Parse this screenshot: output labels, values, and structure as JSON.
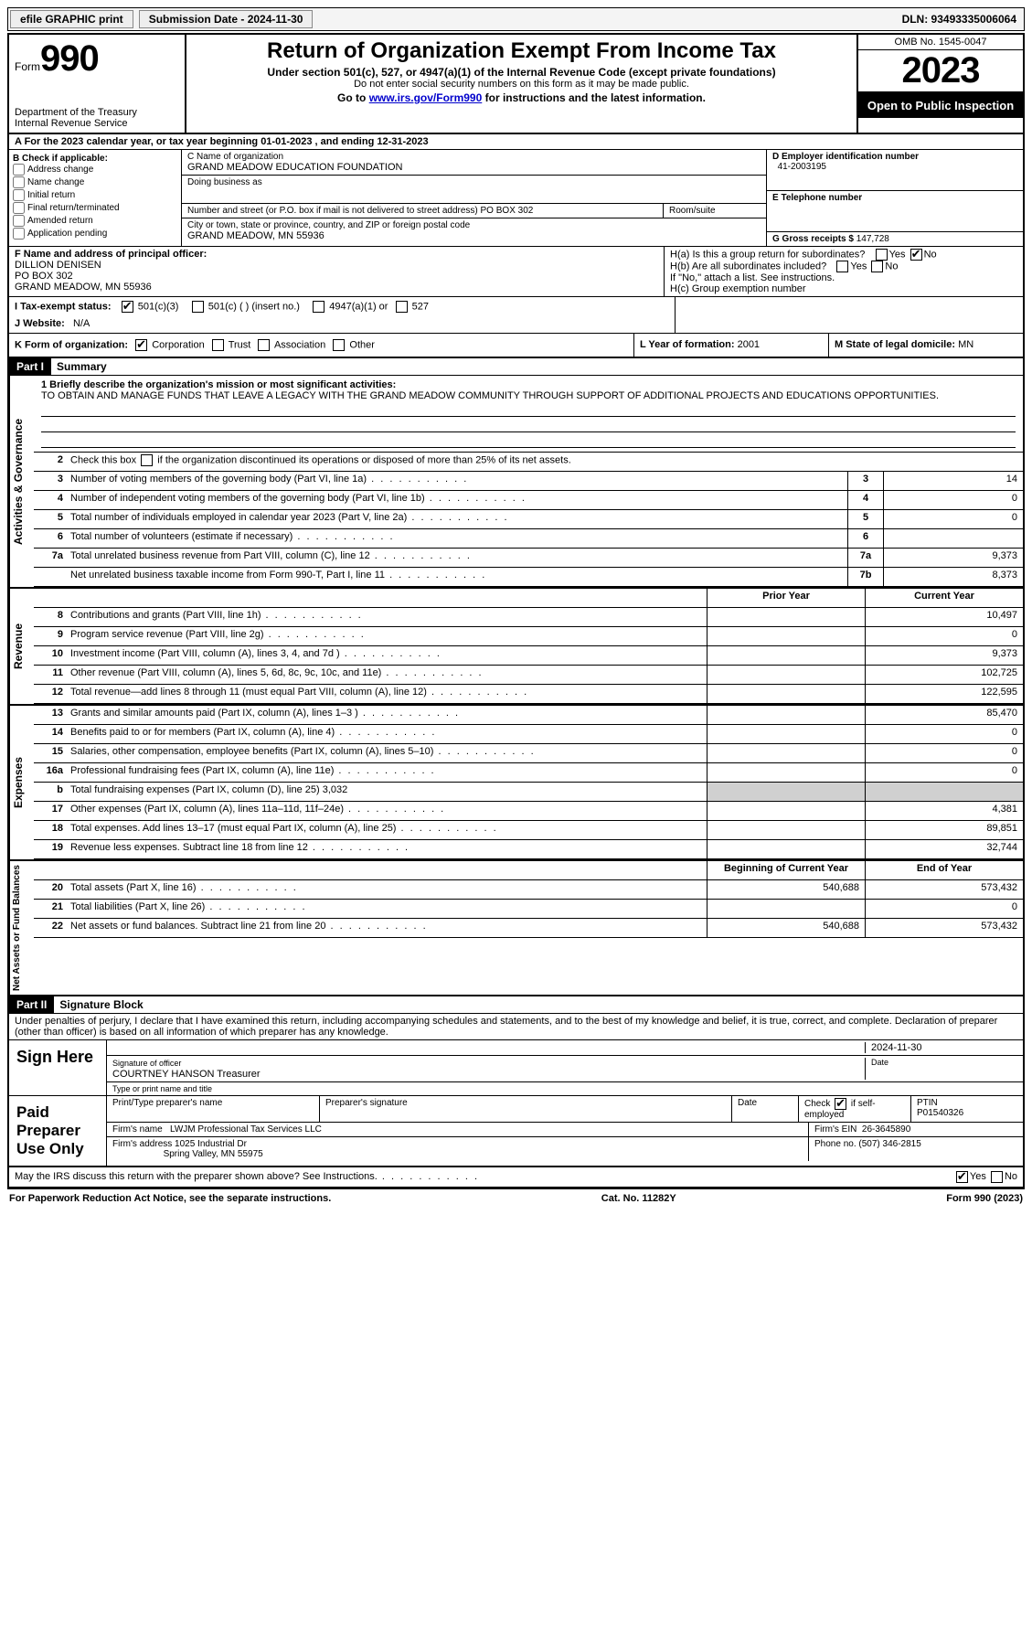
{
  "topbar": {
    "efile": "efile GRAPHIC print",
    "submission": "Submission Date - 2024-11-30",
    "dln": "DLN: 93493335006064"
  },
  "header": {
    "form_word": "Form",
    "form_num": "990",
    "dept": "Department of the Treasury",
    "irs": "Internal Revenue Service",
    "title": "Return of Organization Exempt From Income Tax",
    "sub": "Under section 501(c), 527, or 4947(a)(1) of the Internal Revenue Code (except private foundations)",
    "sub2": "Do not enter social security numbers on this form as it may be made public.",
    "goto_pre": "Go to ",
    "goto_link": "www.irs.gov/Form990",
    "goto_post": " for instructions and the latest information.",
    "omb": "OMB No. 1545-0047",
    "year": "2023",
    "inspect": "Open to Public Inspection"
  },
  "row_a": "A For the 2023 calendar year, or tax year beginning 01-01-2023   , and ending 12-31-2023",
  "box_b": {
    "title": "B Check if applicable:",
    "items": [
      "Address change",
      "Name change",
      "Initial return",
      "Final return/terminated",
      "Amended return",
      "Application pending"
    ]
  },
  "box_c": {
    "name_lbl": "C Name of organization",
    "name": "GRAND MEADOW EDUCATION FOUNDATION",
    "dba_lbl": "Doing business as",
    "dba": "",
    "street_lbl": "Number and street (or P.O. box if mail is not delivered to street address)",
    "street": "PO BOX 302",
    "room_lbl": "Room/suite",
    "city_lbl": "City or town, state or province, country, and ZIP or foreign postal code",
    "city": "GRAND MEADOW, MN  55936"
  },
  "box_d": {
    "lbl": "D Employer identification number",
    "val": "41-2003195"
  },
  "box_e": {
    "lbl": "E Telephone number",
    "val": ""
  },
  "box_g": {
    "lbl": "G Gross receipts $",
    "val": "147,728"
  },
  "box_f": {
    "lbl": "F  Name and address of principal officer:",
    "name": "DILLION DENISEN",
    "street": "PO BOX 302",
    "city": "GRAND MEADOW, MN  55936"
  },
  "box_h": {
    "ha": "H(a)  Is this a group return for subordinates?",
    "hb": "H(b)  Are all subordinates included?",
    "hb_note": "If \"No,\" attach a list. See instructions.",
    "hc": "H(c)  Group exemption number",
    "yes": "Yes",
    "no": "No"
  },
  "box_i": {
    "lbl": "I   Tax-exempt status:",
    "o1": "501(c)(3)",
    "o2": "501(c) (  ) (insert no.)",
    "o3": "4947(a)(1) or",
    "o4": "527"
  },
  "box_j": {
    "lbl": "J   Website:",
    "val": "N/A"
  },
  "box_k": {
    "lbl": "K Form of organization:",
    "o1": "Corporation",
    "o2": "Trust",
    "o3": "Association",
    "o4": "Other"
  },
  "box_l": {
    "lbl": "L Year of formation:",
    "val": "2001"
  },
  "box_m": {
    "lbl": "M State of legal domicile:",
    "val": "MN"
  },
  "part1": {
    "num": "Part I",
    "title": "Summary"
  },
  "mission": {
    "lbl": "1   Briefly describe the organization's mission or most significant activities:",
    "txt": "TO OBTAIN AND MANAGE FUNDS THAT LEAVE A LEGACY WITH THE GRAND MEADOW COMMUNITY THROUGH SUPPORT OF ADDITIONAL PROJECTS AND EDUCATIONS OPPORTUNITIES."
  },
  "line2": "Check this box      if the organization discontinued its operations or disposed of more than 25% of its net assets.",
  "sections": {
    "gov": {
      "label": "Activities & Governance",
      "lines": [
        {
          "n": "3",
          "t": "Number of voting members of the governing body (Part VI, line 1a)",
          "box": "3",
          "v": "14"
        },
        {
          "n": "4",
          "t": "Number of independent voting members of the governing body (Part VI, line 1b)",
          "box": "4",
          "v": "0"
        },
        {
          "n": "5",
          "t": "Total number of individuals employed in calendar year 2023 (Part V, line 2a)",
          "box": "5",
          "v": "0"
        },
        {
          "n": "6",
          "t": "Total number of volunteers (estimate if necessary)",
          "box": "6",
          "v": ""
        },
        {
          "n": "7a",
          "t": "Total unrelated business revenue from Part VIII, column (C), line 12",
          "box": "7a",
          "v": "9,373"
        },
        {
          "n": "",
          "t": "Net unrelated business taxable income from Form 990-T, Part I, line 11",
          "box": "7b",
          "v": "8,373"
        }
      ]
    },
    "rev": {
      "label": "Revenue",
      "hdr_prior": "Prior Year",
      "hdr_curr": "Current Year",
      "lines": [
        {
          "n": "8",
          "t": "Contributions and grants (Part VIII, line 1h)",
          "p": "",
          "c": "10,497"
        },
        {
          "n": "9",
          "t": "Program service revenue (Part VIII, line 2g)",
          "p": "",
          "c": "0"
        },
        {
          "n": "10",
          "t": "Investment income (Part VIII, column (A), lines 3, 4, and 7d )",
          "p": "",
          "c": "9,373"
        },
        {
          "n": "11",
          "t": "Other revenue (Part VIII, column (A), lines 5, 6d, 8c, 9c, 10c, and 11e)",
          "p": "",
          "c": "102,725"
        },
        {
          "n": "12",
          "t": "Total revenue—add lines 8 through 11 (must equal Part VIII, column (A), line 12)",
          "p": "",
          "c": "122,595"
        }
      ]
    },
    "exp": {
      "label": "Expenses",
      "lines": [
        {
          "n": "13",
          "t": "Grants and similar amounts paid (Part IX, column (A), lines 1–3 )",
          "p": "",
          "c": "85,470"
        },
        {
          "n": "14",
          "t": "Benefits paid to or for members (Part IX, column (A), line 4)",
          "p": "",
          "c": "0"
        },
        {
          "n": "15",
          "t": "Salaries, other compensation, employee benefits (Part IX, column (A), lines 5–10)",
          "p": "",
          "c": "0"
        },
        {
          "n": "16a",
          "t": "Professional fundraising fees (Part IX, column (A), line 11e)",
          "p": "",
          "c": "0"
        },
        {
          "n": "b",
          "t": "Total fundraising expenses (Part IX, column (D), line 25) 3,032",
          "p": "shade",
          "c": "shade"
        },
        {
          "n": "17",
          "t": "Other expenses (Part IX, column (A), lines 11a–11d, 11f–24e)",
          "p": "",
          "c": "4,381"
        },
        {
          "n": "18",
          "t": "Total expenses. Add lines 13–17 (must equal Part IX, column (A), line 25)",
          "p": "",
          "c": "89,851"
        },
        {
          "n": "19",
          "t": "Revenue less expenses. Subtract line 18 from line 12",
          "p": "",
          "c": "32,744"
        }
      ]
    },
    "net": {
      "label": "Net Assets or Fund Balances",
      "hdr_prior": "Beginning of Current Year",
      "hdr_curr": "End of Year",
      "lines": [
        {
          "n": "20",
          "t": "Total assets (Part X, line 16)",
          "p": "540,688",
          "c": "573,432"
        },
        {
          "n": "21",
          "t": "Total liabilities (Part X, line 26)",
          "p": "",
          "c": "0"
        },
        {
          "n": "22",
          "t": "Net assets or fund balances. Subtract line 21 from line 20",
          "p": "540,688",
          "c": "573,432"
        }
      ]
    }
  },
  "part2": {
    "num": "Part II",
    "title": "Signature Block"
  },
  "perjury": "Under penalties of perjury, I declare that I have examined this return, including accompanying schedules and statements, and to the best of my knowledge and belief, it is true, correct, and complete. Declaration of preparer (other than officer) is based on all information of which preparer has any knowledge.",
  "sign": {
    "here": "Sign Here",
    "sig_officer": "Signature of officer",
    "officer": "COURTNEY HANSON  Treasurer",
    "type_title": "Type or print name and title",
    "date_lbl": "Date",
    "date": "2024-11-30"
  },
  "paid": {
    "label": "Paid Preparer Use Only",
    "print_lbl": "Print/Type preparer's name",
    "sig_lbl": "Preparer's signature",
    "date_lbl": "Date",
    "check_lbl": "Check",
    "self_emp": "if self-employed",
    "ptin_lbl": "PTIN",
    "ptin": "P01540326",
    "firm_name_lbl": "Firm's name",
    "firm_name": "LWJM Professional Tax Services LLC",
    "firm_ein_lbl": "Firm's EIN",
    "firm_ein": "26-3645890",
    "firm_addr_lbl": "Firm's address",
    "firm_addr1": "1025 Industrial Dr",
    "firm_addr2": "Spring Valley, MN  55975",
    "phone_lbl": "Phone no.",
    "phone": "(507) 346-2815"
  },
  "discuss": "May the IRS discuss this return with the preparer shown above? See Instructions.",
  "footer": {
    "left": "For Paperwork Reduction Act Notice, see the separate instructions.",
    "mid": "Cat. No. 11282Y",
    "right": "Form 990 (2023)"
  }
}
